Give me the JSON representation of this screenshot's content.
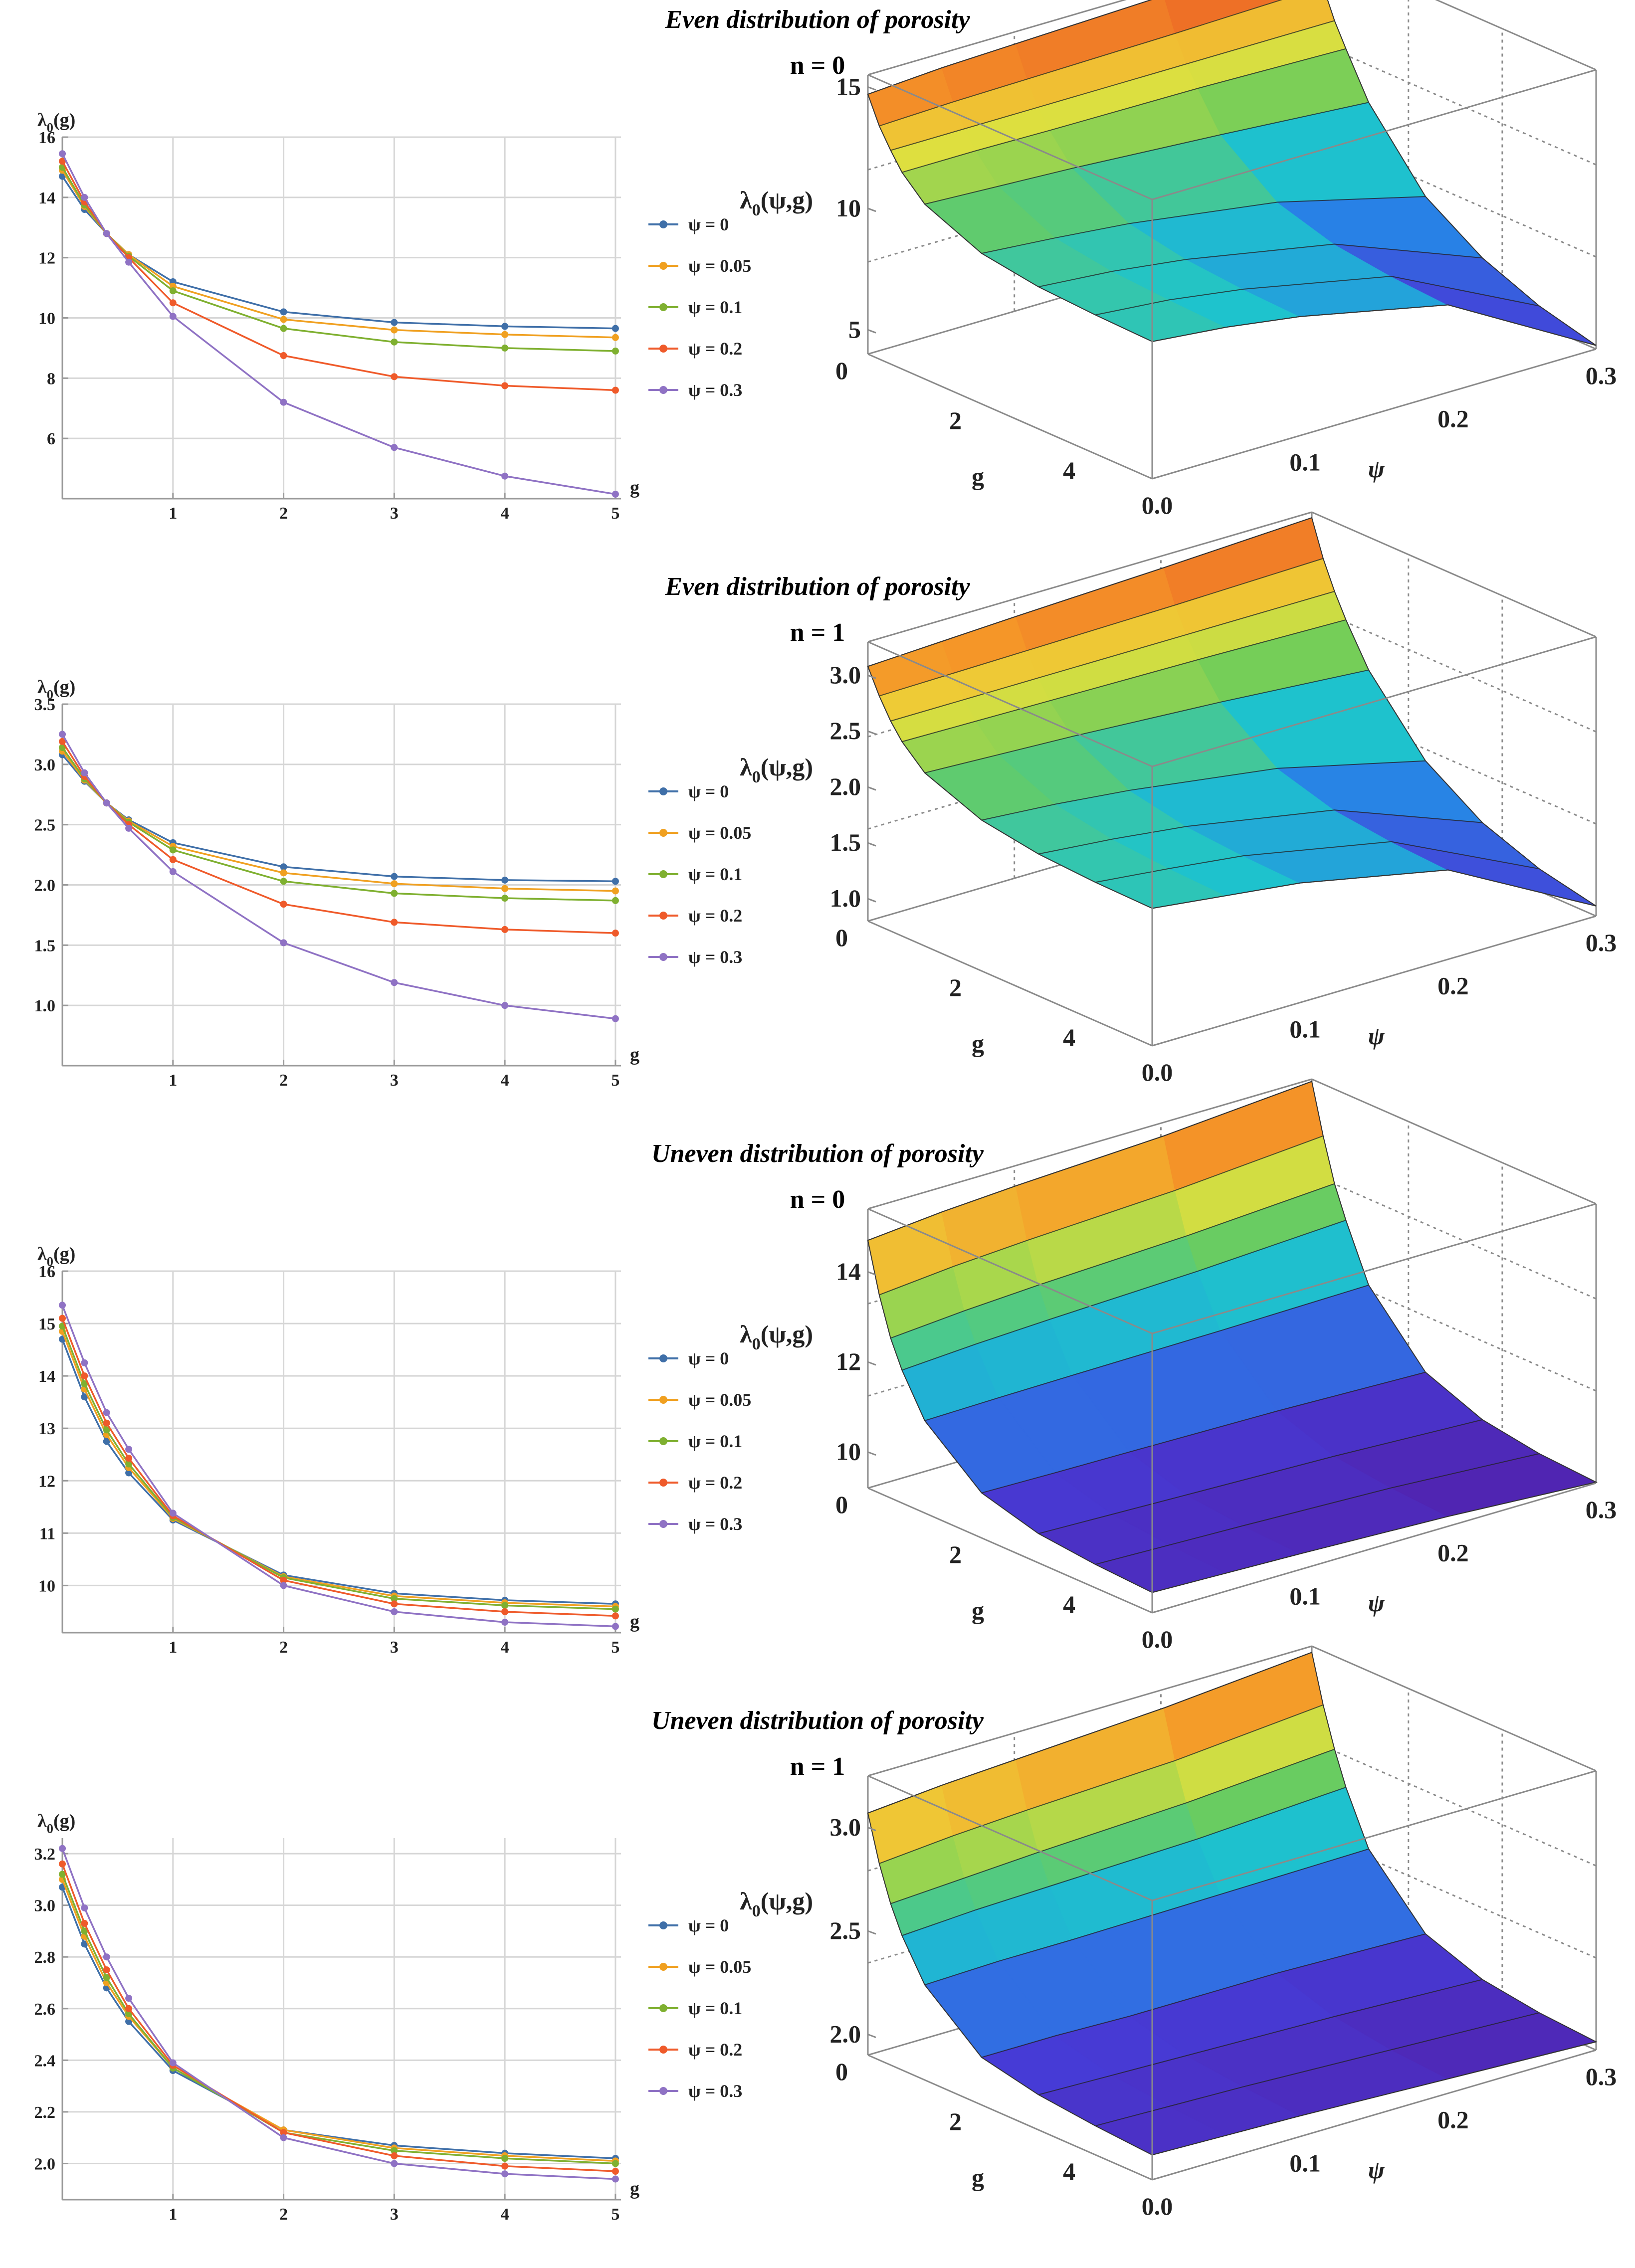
{
  "colors": {
    "psi0": "#3f6fa8",
    "psi005": "#f0a020",
    "psi01": "#7fb030",
    "psi02": "#ef5a2a",
    "psi03": "#8f72c4",
    "grid": "#d6d6d6",
    "axis": "#9a9a9a"
  },
  "icons": {
    "marker": "circle-marker-icon"
  },
  "chart_data": [
    {
      "type": "line",
      "panel_title": "Even distribution of porosity",
      "panel_subtitle": "n = 0",
      "title": "Even distribution of porosity n = 0",
      "ylabel": "λ0(g)",
      "xlabel": "g",
      "x": [
        0,
        0.2,
        0.4,
        0.6,
        1,
        2,
        3,
        4,
        5
      ],
      "xticks": [
        "1",
        "2",
        "3",
        "4",
        "5"
      ],
      "xtick_values": [
        1,
        2,
        3,
        4,
        5
      ],
      "ylim": [
        4,
        16
      ],
      "yticks": [
        "6",
        "8",
        "10",
        "12",
        "14",
        "16"
      ],
      "ytick_values": [
        6,
        8,
        10,
        12,
        14,
        16
      ],
      "grid": true,
      "legend_position": "right",
      "series": [
        {
          "name": "ψ = 0",
          "values": [
            14.7,
            13.6,
            12.8,
            12.1,
            11.2,
            10.2,
            9.85,
            9.72,
            9.65
          ]
        },
        {
          "name": "ψ = 0.05",
          "values": [
            14.9,
            13.7,
            12.8,
            12.1,
            11.05,
            9.95,
            9.6,
            9.45,
            9.35
          ]
        },
        {
          "name": "ψ = 0.1",
          "values": [
            15.0,
            13.75,
            12.8,
            12.05,
            10.9,
            9.65,
            9.2,
            9.0,
            8.9
          ]
        },
        {
          "name": "ψ = 0.2",
          "values": [
            15.2,
            13.85,
            12.8,
            12.0,
            10.5,
            8.75,
            8.05,
            7.75,
            7.6
          ]
        },
        {
          "name": "ψ = 0.3",
          "values": [
            15.45,
            14.0,
            12.8,
            11.85,
            10.05,
            7.2,
            5.7,
            4.75,
            4.15
          ]
        }
      ],
      "surface": {
        "zlabel": "λ0(ψ,g)",
        "glabel": "g",
        "psilabel": "ψ",
        "zticks": [
          "5",
          "10",
          "15"
        ],
        "gticks": [
          "0",
          "2",
          "4"
        ],
        "psiticks": [
          "0.0",
          "0.1",
          "0.2",
          "0.3"
        ],
        "zrange": [
          4,
          15.5
        ],
        "colorscheme": "rainbow"
      }
    },
    {
      "type": "line",
      "panel_title": "Even distribution of porosity",
      "panel_subtitle": "n = 1",
      "title": "Even distribution of porosity n = 1",
      "ylabel": "λ0(g)",
      "xlabel": "g",
      "x": [
        0,
        0.2,
        0.4,
        0.6,
        1,
        2,
        3,
        4,
        5
      ],
      "xticks": [
        "1",
        "2",
        "3",
        "4",
        "5"
      ],
      "xtick_values": [
        1,
        2,
        3,
        4,
        5
      ],
      "ylim": [
        0.5,
        3.5
      ],
      "yticks": [
        "1.0",
        "1.5",
        "2.0",
        "2.5",
        "3.0",
        "3.5"
      ],
      "ytick_values": [
        1.0,
        1.5,
        2.0,
        2.5,
        3.0,
        3.5
      ],
      "grid": true,
      "legend_position": "right",
      "series": [
        {
          "name": "ψ = 0",
          "values": [
            3.08,
            2.86,
            2.68,
            2.54,
            2.35,
            2.15,
            2.07,
            2.04,
            2.03
          ]
        },
        {
          "name": "ψ = 0.05",
          "values": [
            3.11,
            2.87,
            2.68,
            2.53,
            2.32,
            2.1,
            2.01,
            1.97,
            1.95
          ]
        },
        {
          "name": "ψ = 0.1",
          "values": [
            3.14,
            2.88,
            2.68,
            2.52,
            2.29,
            2.03,
            1.93,
            1.89,
            1.87
          ]
        },
        {
          "name": "ψ = 0.2",
          "values": [
            3.19,
            2.9,
            2.68,
            2.5,
            2.21,
            1.84,
            1.69,
            1.63,
            1.6
          ]
        },
        {
          "name": "ψ = 0.3",
          "values": [
            3.25,
            2.93,
            2.68,
            2.47,
            2.11,
            1.52,
            1.19,
            1.0,
            0.89
          ]
        }
      ],
      "surface": {
        "zlabel": "λ0(ψ,g)",
        "glabel": "g",
        "psilabel": "ψ",
        "zticks": [
          "1.0",
          "1.5",
          "2.0",
          "2.5",
          "3.0"
        ],
        "gticks": [
          "0",
          "2",
          "4"
        ],
        "psiticks": [
          "0.0",
          "0.1",
          "0.2",
          "0.3"
        ],
        "zrange": [
          0.8,
          3.3
        ],
        "colorscheme": "rainbow"
      }
    },
    {
      "type": "line",
      "panel_title": "Uneven distribution of porosity",
      "panel_subtitle": "n = 0",
      "title": "Uneven distribution of porosity n = 0",
      "ylabel": "λ0(g)",
      "xlabel": "g",
      "x": [
        0,
        0.2,
        0.4,
        0.6,
        1,
        2,
        3,
        4,
        5
      ],
      "xticks": [
        "1",
        "2",
        "3",
        "4",
        "5"
      ],
      "xtick_values": [
        1,
        2,
        3,
        4,
        5
      ],
      "ylim": [
        9.1,
        16
      ],
      "yticks": [
        "10",
        "11",
        "12",
        "13",
        "14",
        "15",
        "16"
      ],
      "ytick_values": [
        10,
        11,
        12,
        13,
        14,
        15,
        16
      ],
      "grid": true,
      "legend_position": "right",
      "series": [
        {
          "name": "ψ = 0",
          "values": [
            14.7,
            13.6,
            12.75,
            12.15,
            11.25,
            10.2,
            9.85,
            9.72,
            9.65
          ]
        },
        {
          "name": "ψ = 0.05",
          "values": [
            14.85,
            13.75,
            12.88,
            12.25,
            11.28,
            10.17,
            9.8,
            9.67,
            9.6
          ]
        },
        {
          "name": "ψ = 0.1",
          "values": [
            14.95,
            13.85,
            12.97,
            12.32,
            11.3,
            10.15,
            9.75,
            9.62,
            9.55
          ]
        },
        {
          "name": "ψ = 0.2",
          "values": [
            15.1,
            14.0,
            13.1,
            12.43,
            11.33,
            10.1,
            9.65,
            9.5,
            9.42
          ]
        },
        {
          "name": "ψ = 0.3",
          "values": [
            15.35,
            14.25,
            13.3,
            12.6,
            11.38,
            10.0,
            9.5,
            9.3,
            9.22
          ]
        }
      ],
      "surface": {
        "zlabel": "λ0(ψ,g)",
        "glabel": "g",
        "psilabel": "ψ",
        "zticks": [
          "10",
          "12",
          "14"
        ],
        "gticks": [
          "0",
          "2",
          "4"
        ],
        "psiticks": [
          "0.0",
          "0.1",
          "0.2",
          "0.3"
        ],
        "zrange": [
          9.2,
          15.4
        ],
        "colorscheme": "rainbow"
      }
    },
    {
      "type": "line",
      "panel_title": "Uneven distribution of porosity",
      "panel_subtitle": "n = 1",
      "title": "Uneven distribution of porosity n = 1",
      "ylabel": "λ0(g)",
      "xlabel": "g",
      "x": [
        0,
        0.2,
        0.4,
        0.6,
        1,
        2,
        3,
        4,
        5
      ],
      "xticks": [
        "1",
        "2",
        "3",
        "4",
        "5"
      ],
      "xtick_values": [
        1,
        2,
        3,
        4,
        5
      ],
      "ylim": [
        1.86,
        3.26
      ],
      "yticks": [
        "2.0",
        "2.2",
        "2.4",
        "2.6",
        "2.8",
        "3.0",
        "3.2"
      ],
      "ytick_values": [
        2.0,
        2.2,
        2.4,
        2.6,
        2.8,
        3.0,
        3.2
      ],
      "grid": true,
      "legend_position": "right",
      "series": [
        {
          "name": "ψ = 0",
          "values": [
            3.07,
            2.85,
            2.68,
            2.55,
            2.36,
            2.13,
            2.07,
            2.04,
            2.02
          ]
        },
        {
          "name": "ψ = 0.05",
          "values": [
            3.1,
            2.88,
            2.7,
            2.57,
            2.37,
            2.13,
            2.06,
            2.03,
            2.01
          ]
        },
        {
          "name": "ψ = 0.1",
          "values": [
            3.12,
            2.9,
            2.72,
            2.58,
            2.37,
            2.12,
            2.05,
            2.02,
            2.0
          ]
        },
        {
          "name": "ψ = 0.2",
          "values": [
            3.16,
            2.93,
            2.75,
            2.6,
            2.38,
            2.12,
            2.03,
            1.99,
            1.97
          ]
        },
        {
          "name": "ψ = 0.3",
          "values": [
            3.22,
            2.99,
            2.8,
            2.64,
            2.39,
            2.1,
            2.0,
            1.96,
            1.94
          ]
        }
      ],
      "surface": {
        "zlabel": "λ0(ψ,g)",
        "glabel": "g",
        "psilabel": "ψ",
        "zticks": [
          "2.0",
          "2.5",
          "3.0"
        ],
        "gticks": [
          "0",
          "2",
          "4"
        ],
        "psiticks": [
          "0.0",
          "0.1",
          "0.2",
          "0.3"
        ],
        "zrange": [
          1.9,
          3.25
        ],
        "colorscheme": "rainbow"
      }
    }
  ]
}
